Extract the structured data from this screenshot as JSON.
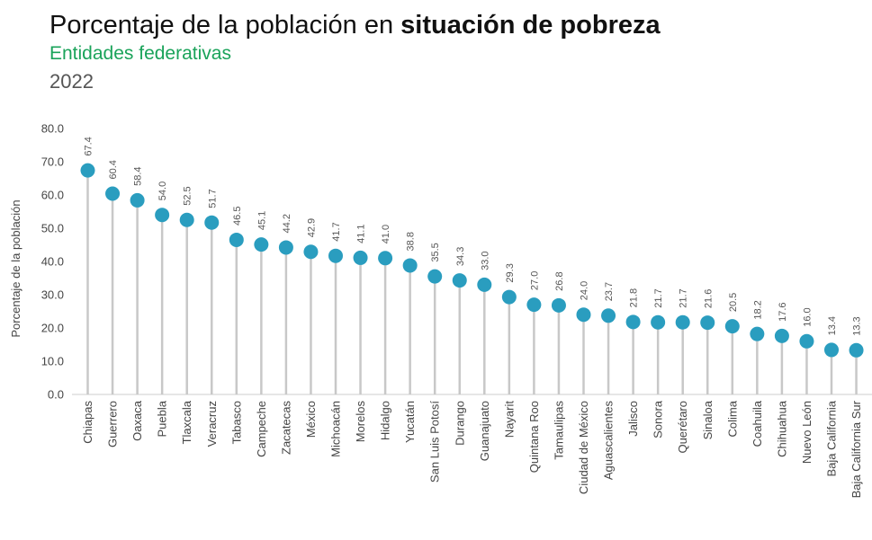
{
  "header": {
    "title_prefix": "Porcentaje de la población en ",
    "title_bold": "situación de pobreza",
    "subtitle": "Entidades federativas",
    "year": "2022"
  },
  "colors": {
    "point": "#2a9dbf",
    "stem": "#c8c8c8",
    "subtitle": "#1aa35a"
  },
  "chart_data": {
    "type": "lollipop",
    "ylabel": "Porcentaje de la población",
    "ylim": [
      0,
      80
    ],
    "yticks": [
      "0.0",
      "10.0",
      "20.0",
      "30.0",
      "40.0",
      "50.0",
      "60.0",
      "70.0",
      "80.0"
    ],
    "categories": [
      "Chiapas",
      "Guerrero",
      "Oaxaca",
      "Puebla",
      "Tlaxcala",
      "Veracruz",
      "Tabasco",
      "Campeche",
      "Zacatecas",
      "México",
      "Michoacán",
      "Morelos",
      "Hidalgo",
      "Yucatán",
      "San Luis Potosí",
      "Durango",
      "Guanajuato",
      "Nayarit",
      "Quintana Roo",
      "Tamaulipas",
      "Ciudad de México",
      "Aguascalientes",
      "Jalisco",
      "Sonora",
      "Querétaro",
      "Sinaloa",
      "Colima",
      "Coahuila",
      "Chihuahua",
      "Nuevo León",
      "Baja California",
      "Baja California Sur"
    ],
    "values": [
      67.4,
      60.4,
      58.4,
      54.0,
      52.5,
      51.7,
      46.5,
      45.1,
      44.2,
      42.9,
      41.7,
      41.1,
      41.0,
      38.8,
      35.5,
      34.3,
      33.0,
      29.3,
      27.0,
      26.8,
      24.0,
      23.7,
      21.8,
      21.7,
      21.7,
      21.6,
      20.5,
      18.2,
      17.6,
      16.0,
      13.4,
      13.3
    ],
    "labels": [
      "67.4",
      "60.4",
      "58.4",
      "54.0",
      "52.5",
      "51.7",
      "46.5",
      "45.1",
      "44.2",
      "42.9",
      "41.7",
      "41.1",
      "41.0",
      "38.8",
      "35.5",
      "34.3",
      "33.0",
      "29.3",
      "27.0",
      "26.8",
      "24.0",
      "23.7",
      "21.8",
      "21.7",
      "21.7",
      "21.6",
      "20.5",
      "18.2",
      "17.6",
      "16.0",
      "13.4",
      "13.3"
    ],
    "grid": false,
    "legend": "none"
  }
}
